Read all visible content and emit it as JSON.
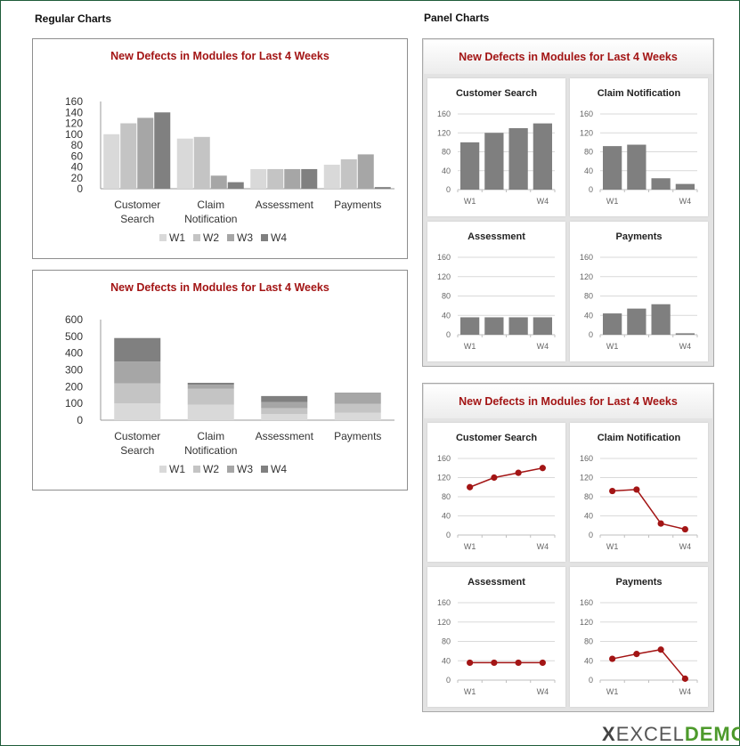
{
  "headings": {
    "regular": "Regular Charts",
    "panel": "Panel Charts"
  },
  "logo": {
    "text_x": "X",
    "text_excel": "EXCEL",
    "text_d": "DEMO"
  },
  "colors": {
    "title_red": "#a31515",
    "w1": "#d9d9d9",
    "w2": "#c4c4c4",
    "w3": "#a6a6a6",
    "w4": "#808080",
    "panel_bar": "#7f7f7f",
    "panel_line": "#a31515"
  },
  "chart_data": [
    {
      "id": "clustered",
      "type": "bar",
      "title": "New Defects in Modules for Last 4 Weeks",
      "categories": [
        [
          "Customer",
          "Search"
        ],
        [
          "Claim",
          "Notification"
        ],
        [
          "Assessment"
        ],
        [
          "Payments"
        ]
      ],
      "series": [
        {
          "name": "W1",
          "values": [
            100,
            92,
            36,
            44
          ]
        },
        {
          "name": "W2",
          "values": [
            120,
            95,
            36,
            54
          ]
        },
        {
          "name": "W3",
          "values": [
            130,
            24,
            36,
            63
          ]
        },
        {
          "name": "W4",
          "values": [
            140,
            12,
            36,
            3
          ]
        }
      ],
      "ylim": [
        0,
        160
      ],
      "yticks": [
        0,
        20,
        40,
        60,
        80,
        100,
        120,
        140,
        160
      ],
      "legend": "bottom"
    },
    {
      "id": "stacked",
      "type": "bar",
      "stacked": true,
      "title": "New Defects in Modules for Last 4 Weeks",
      "categories": [
        [
          "Customer",
          "Search"
        ],
        [
          "Claim",
          "Notification"
        ],
        [
          "Assessment"
        ],
        [
          "Payments"
        ]
      ],
      "series": [
        {
          "name": "W1",
          "values": [
            100,
            92,
            36,
            44
          ]
        },
        {
          "name": "W2",
          "values": [
            120,
            95,
            36,
            54
          ]
        },
        {
          "name": "W3",
          "values": [
            130,
            24,
            36,
            63
          ]
        },
        {
          "name": "W4",
          "values": [
            140,
            12,
            36,
            3
          ]
        }
      ],
      "ylim": [
        0,
        600
      ],
      "yticks": [
        0,
        100,
        200,
        300,
        400,
        500,
        600
      ],
      "legend": "bottom"
    },
    {
      "id": "panel-bars",
      "type": "bar",
      "title": "New Defects in Modules for Last 4 Weeks",
      "x": [
        "W1",
        "W2",
        "W3",
        "W4"
      ],
      "x_labels_shown": [
        "W1",
        "W4"
      ],
      "ylim": [
        0,
        160
      ],
      "yticks": [
        0,
        40,
        80,
        120,
        160
      ],
      "panels": [
        {
          "name": "Customer Search",
          "values": [
            100,
            120,
            130,
            140
          ]
        },
        {
          "name": "Claim Notification",
          "values": [
            92,
            95,
            24,
            12
          ]
        },
        {
          "name": "Assessment",
          "values": [
            36,
            36,
            36,
            36
          ]
        },
        {
          "name": "Payments",
          "values": [
            44,
            54,
            63,
            3
          ]
        }
      ]
    },
    {
      "id": "panel-lines",
      "type": "line",
      "title": "New Defects in Modules for Last 4 Weeks",
      "x": [
        "W1",
        "W2",
        "W3",
        "W4"
      ],
      "x_labels_shown": [
        "W1",
        "W4"
      ],
      "ylim": [
        0,
        160
      ],
      "yticks": [
        0,
        40,
        80,
        120,
        160
      ],
      "panels": [
        {
          "name": "Customer Search",
          "values": [
            100,
            120,
            130,
            140
          ]
        },
        {
          "name": "Claim Notification",
          "values": [
            92,
            95,
            24,
            12
          ]
        },
        {
          "name": "Assessment",
          "values": [
            36,
            36,
            36,
            36
          ]
        },
        {
          "name": "Payments",
          "values": [
            44,
            54,
            63,
            3
          ]
        }
      ]
    }
  ]
}
